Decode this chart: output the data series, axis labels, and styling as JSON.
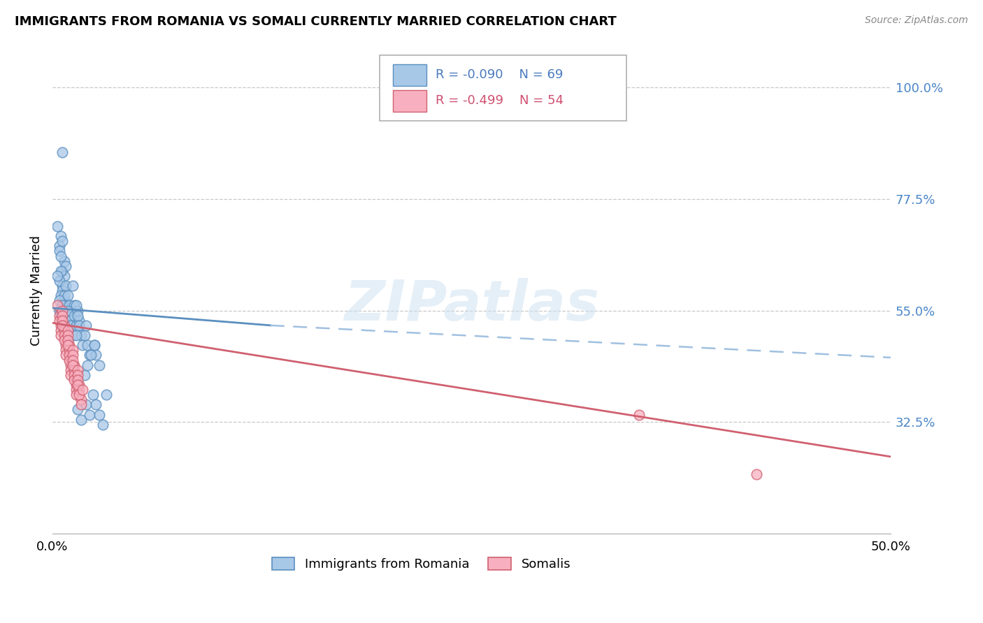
{
  "title": "IMMIGRANTS FROM ROMANIA VS SOMALI CURRENTLY MARRIED CORRELATION CHART",
  "source": "Source: ZipAtlas.com",
  "ylabel": "Currently Married",
  "right_yticks": [
    "100.0%",
    "77.5%",
    "55.0%",
    "32.5%"
  ],
  "right_ytick_vals": [
    1.0,
    0.775,
    0.55,
    0.325
  ],
  "romania_color": "#a8c8e8",
  "somali_color": "#f8b0c0",
  "romania_edge": "#5b8fbf",
  "somali_edge": "#d06070",
  "trendline_romania_color": "#5b8fbf",
  "trendline_somali_color": "#d06070",
  "trendline_dashed_color": "#a0c0e0",
  "watermark_text": "ZIPatlas",
  "xlim": [
    0.0,
    0.5
  ],
  "ylim": [
    0.1,
    1.08
  ],
  "romania_x": [
    0.006,
    0.003,
    0.004,
    0.005,
    0.004,
    0.006,
    0.007,
    0.005,
    0.006,
    0.008,
    0.007,
    0.006,
    0.005,
    0.004,
    0.006,
    0.007,
    0.008,
    0.005,
    0.006,
    0.004,
    0.003,
    0.007,
    0.008,
    0.006,
    0.005,
    0.004,
    0.007,
    0.006,
    0.005,
    0.008,
    0.009,
    0.01,
    0.011,
    0.012,
    0.013,
    0.009,
    0.01,
    0.011,
    0.012,
    0.013,
    0.014,
    0.015,
    0.016,
    0.014,
    0.015,
    0.016,
    0.017,
    0.018,
    0.019,
    0.02,
    0.021,
    0.022,
    0.014,
    0.025,
    0.026,
    0.028,
    0.019,
    0.021,
    0.023,
    0.025,
    0.015,
    0.017,
    0.02,
    0.022,
    0.024,
    0.026,
    0.028,
    0.03,
    0.032
  ],
  "romania_y": [
    0.87,
    0.72,
    0.68,
    0.7,
    0.67,
    0.69,
    0.65,
    0.66,
    0.63,
    0.64,
    0.62,
    0.6,
    0.63,
    0.61,
    0.59,
    0.57,
    0.6,
    0.58,
    0.56,
    0.55,
    0.62,
    0.58,
    0.56,
    0.54,
    0.55,
    0.57,
    0.53,
    0.56,
    0.54,
    0.52,
    0.58,
    0.56,
    0.54,
    0.6,
    0.56,
    0.55,
    0.53,
    0.52,
    0.5,
    0.54,
    0.52,
    0.55,
    0.53,
    0.56,
    0.54,
    0.52,
    0.5,
    0.48,
    0.5,
    0.52,
    0.48,
    0.46,
    0.5,
    0.48,
    0.46,
    0.44,
    0.42,
    0.44,
    0.46,
    0.48,
    0.35,
    0.33,
    0.36,
    0.34,
    0.38,
    0.36,
    0.34,
    0.32,
    0.38
  ],
  "somali_x": [
    0.003,
    0.004,
    0.005,
    0.006,
    0.004,
    0.005,
    0.006,
    0.007,
    0.005,
    0.006,
    0.007,
    0.008,
    0.006,
    0.007,
    0.008,
    0.009,
    0.007,
    0.008,
    0.009,
    0.01,
    0.008,
    0.009,
    0.01,
    0.011,
    0.009,
    0.01,
    0.011,
    0.012,
    0.01,
    0.011,
    0.012,
    0.013,
    0.011,
    0.012,
    0.013,
    0.014,
    0.012,
    0.013,
    0.014,
    0.015,
    0.013,
    0.014,
    0.015,
    0.016,
    0.014,
    0.015,
    0.016,
    0.017,
    0.015,
    0.016,
    0.017,
    0.018,
    0.35,
    0.42
  ],
  "somali_y": [
    0.56,
    0.54,
    0.52,
    0.55,
    0.53,
    0.51,
    0.54,
    0.52,
    0.5,
    0.53,
    0.51,
    0.49,
    0.52,
    0.5,
    0.48,
    0.51,
    0.49,
    0.47,
    0.5,
    0.48,
    0.46,
    0.49,
    0.47,
    0.45,
    0.48,
    0.46,
    0.44,
    0.47,
    0.45,
    0.43,
    0.46,
    0.44,
    0.42,
    0.45,
    0.43,
    0.41,
    0.44,
    0.42,
    0.4,
    0.43,
    0.41,
    0.39,
    0.42,
    0.4,
    0.38,
    0.41,
    0.39,
    0.37,
    0.4,
    0.38,
    0.36,
    0.39,
    0.34,
    0.22
  ],
  "trendline_romania_x0": 0.0,
  "trendline_romania_x1": 0.13,
  "trendline_romania_y0": 0.555,
  "trendline_romania_y1": 0.52,
  "trendline_dashed_x0": 0.13,
  "trendline_dashed_x1": 0.5,
  "trendline_dashed_y0": 0.52,
  "trendline_dashed_y1": 0.455,
  "trendline_somali_x0": 0.0,
  "trendline_somali_x1": 0.5,
  "trendline_somali_y0": 0.525,
  "trendline_somali_y1": 0.255,
  "leg_romania_text1": "R = -0.090",
  "leg_romania_text2": "N = 69",
  "leg_somali_text1": "R = -0.499",
  "leg_somali_text2": "N = 54",
  "leg_romania_label": "Immigrants from Romania",
  "leg_somali_label": "Somalis"
}
